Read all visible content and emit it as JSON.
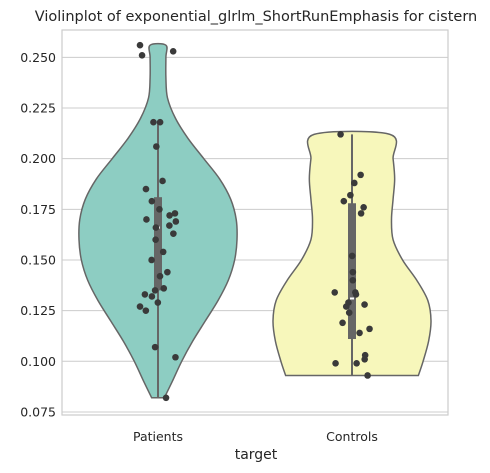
{
  "chart_data": {
    "type": "violin",
    "title": "Violinplot of exponential_glrlm_ShortRunEmphasis for cistern",
    "xlabel": "target",
    "ylabel": "",
    "categories": [
      "Patients",
      "Controls"
    ],
    "ylim": [
      0.0735,
      0.2635
    ],
    "yticks": [
      0.075,
      0.1,
      0.125,
      0.15,
      0.175,
      0.2,
      0.225,
      0.25
    ],
    "ytick_labels": [
      "0.075",
      "0.100",
      "0.125",
      "0.150",
      "0.175",
      "0.200",
      "0.225",
      "0.250"
    ],
    "grid": "horizontal",
    "violins": [
      {
        "category": "Patients",
        "color": "#8dcdc2",
        "min": 0.082,
        "max": 0.256,
        "q1": 0.135,
        "median": 0.166,
        "q3": 0.181,
        "whisker_low": 0.082,
        "whisker_high": 0.218,
        "density_profile": [
          [
            0.082,
            0.08
          ],
          [
            0.09,
            0.18
          ],
          [
            0.1,
            0.3
          ],
          [
            0.11,
            0.44
          ],
          [
            0.12,
            0.6
          ],
          [
            0.13,
            0.76
          ],
          [
            0.14,
            0.89
          ],
          [
            0.15,
            0.97
          ],
          [
            0.16,
            1.0
          ],
          [
            0.17,
            0.99
          ],
          [
            0.18,
            0.92
          ],
          [
            0.19,
            0.78
          ],
          [
            0.2,
            0.58
          ],
          [
            0.21,
            0.38
          ],
          [
            0.22,
            0.22
          ],
          [
            0.23,
            0.12
          ],
          [
            0.24,
            0.1
          ],
          [
            0.25,
            0.1
          ],
          [
            0.256,
            0.1
          ]
        ],
        "points": [
          0.256,
          0.253,
          0.251,
          0.218,
          0.218,
          0.206,
          0.189,
          0.185,
          0.179,
          0.175,
          0.173,
          0.172,
          0.17,
          0.169,
          0.167,
          0.166,
          0.163,
          0.16,
          0.154,
          0.15,
          0.144,
          0.142,
          0.136,
          0.135,
          0.133,
          0.132,
          0.129,
          0.127,
          0.125,
          0.107,
          0.102,
          0.082
        ]
      },
      {
        "category": "Controls",
        "color": "#f7f7bb",
        "min": 0.093,
        "max": 0.212,
        "q1": 0.111,
        "median": 0.131,
        "q3": 0.178,
        "whisker_low": 0.093,
        "whisker_high": 0.212,
        "density_profile": [
          [
            0.093,
            0.84
          ],
          [
            0.1,
            0.9
          ],
          [
            0.11,
            0.97
          ],
          [
            0.12,
            1.0
          ],
          [
            0.13,
            0.96
          ],
          [
            0.14,
            0.82
          ],
          [
            0.15,
            0.64
          ],
          [
            0.16,
            0.52
          ],
          [
            0.17,
            0.5
          ],
          [
            0.18,
            0.52
          ],
          [
            0.19,
            0.54
          ],
          [
            0.2,
            0.52
          ],
          [
            0.212,
            0.48
          ]
        ],
        "points": [
          0.212,
          0.192,
          0.188,
          0.182,
          0.179,
          0.176,
          0.173,
          0.152,
          0.144,
          0.14,
          0.134,
          0.134,
          0.133,
          0.129,
          0.128,
          0.127,
          0.124,
          0.119,
          0.116,
          0.114,
          0.103,
          0.101,
          0.099,
          0.099,
          0.093
        ]
      }
    ]
  }
}
